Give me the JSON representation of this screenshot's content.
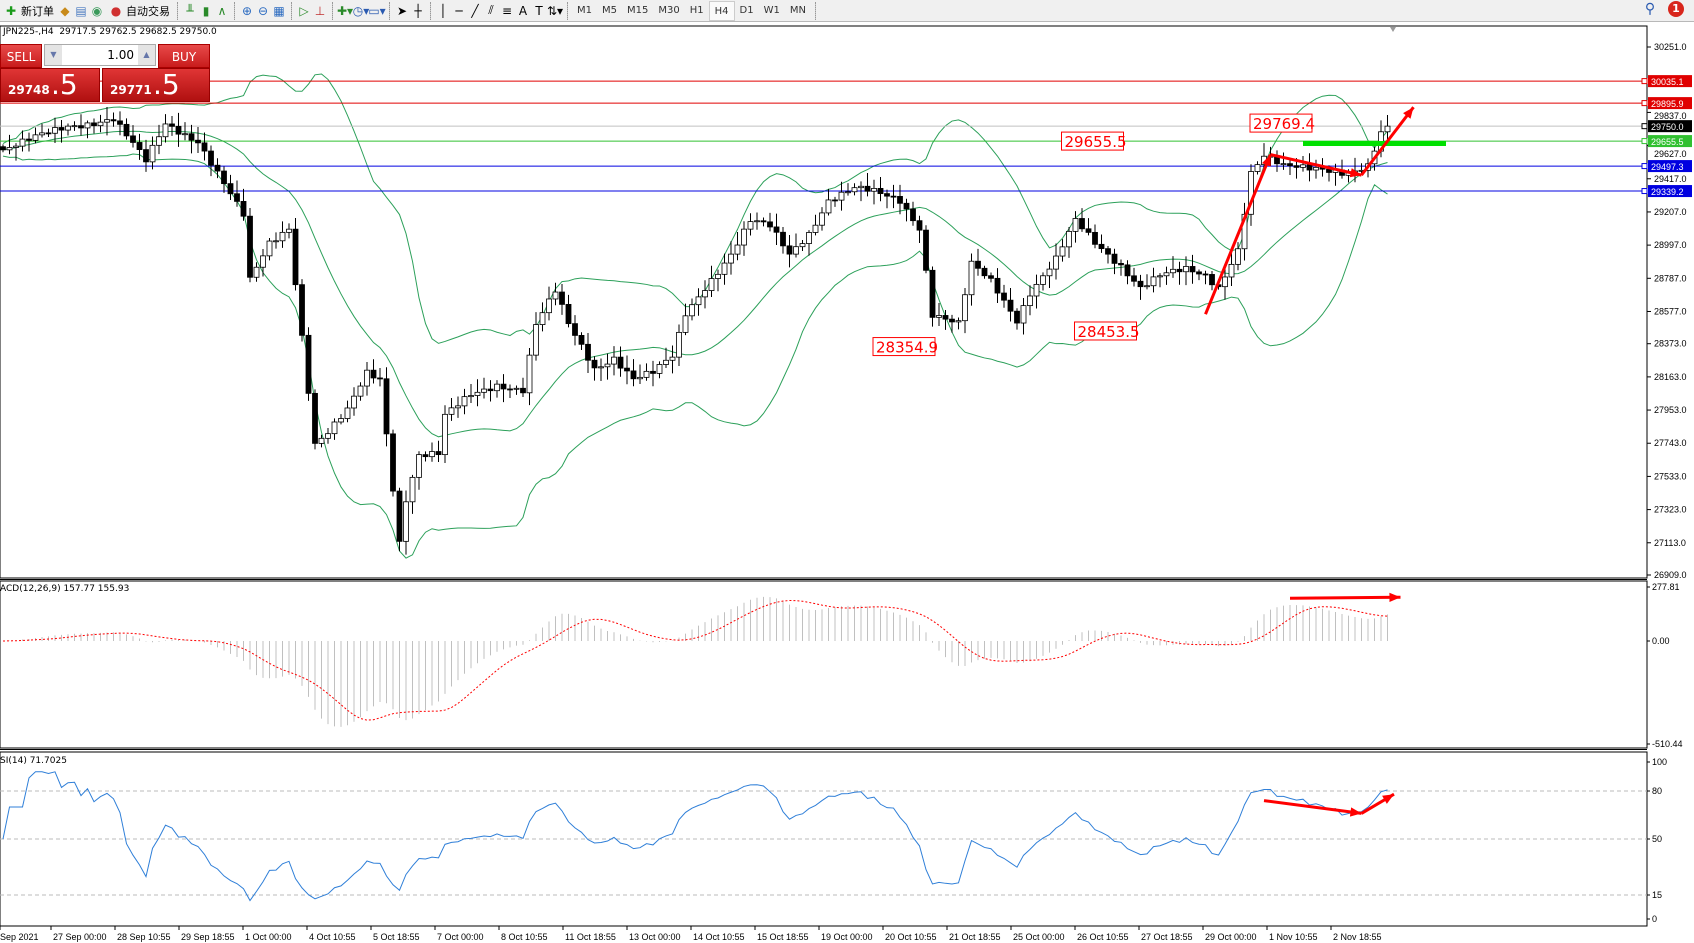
{
  "toolbar": {
    "new_order": "新订单",
    "auto_trading": "自动交易",
    "icons": [
      "new-order-icon",
      "market-watch-icon",
      "data-window-icon",
      "signals-icon",
      "auto-trading-icon",
      "bar-chart-icon",
      "candlestick-icon",
      "line-chart-icon",
      "zoom-in-icon",
      "zoom-out-icon",
      "tile-windows-icon",
      "autoscroll-icon",
      "chart-shift-icon",
      "indicators-icon",
      "periods-icon",
      "templates-icon",
      "cursor-icon",
      "crosshair-icon",
      "vertical-line-icon",
      "horizontal-line-icon",
      "trendline-icon",
      "equidistant-channel-icon",
      "fibonacci-icon",
      "text-icon",
      "text-label-icon",
      "arrows-icon"
    ],
    "timeframes": [
      "M1",
      "M5",
      "M15",
      "M30",
      "H1",
      "H4",
      "D1",
      "W1",
      "MN"
    ],
    "active_timeframe": "H4",
    "notifications": "1"
  },
  "symbol_info": "JPN225-,H4  29717.5 29762.5 29682.5 29750.0",
  "trade_panel": {
    "sell": "SELL",
    "buy": "BUY",
    "lots": "1.00",
    "bid_main": "29748",
    "bid_pip": ".5",
    "ask_main": "29771",
    "ask_pip": ".5"
  },
  "chart_data": [
    {
      "type": "candlestick",
      "symbol": "JPN225-",
      "timeframe": "H4",
      "y_ticks": [
        "30251.0",
        "29837.0",
        "29627.0",
        "29417.0",
        "29207.0",
        "28997.0",
        "28787.0",
        "28577.0",
        "28373.0",
        "28163.0",
        "27953.0",
        "27743.0",
        "27533.0",
        "27323.0",
        "27113.0",
        "26909.0"
      ],
      "ylim": [
        26909,
        30251
      ],
      "x_ticks": [
        "Sep 2021",
        "27 Sep 00:00",
        "28 Sep 10:55",
        "29 Sep 18:55",
        "1 Oct 00:00",
        "4 Oct 10:55",
        "5 Oct 18:55",
        "7 Oct 00:00",
        "8 Oct 10:55",
        "11 Oct 18:55",
        "13 Oct 00:00",
        "14 Oct 10:55",
        "15 Oct 18:55",
        "19 Oct 00:00",
        "20 Oct 10:55",
        "21 Oct 18:55",
        "25 Oct 00:00",
        "26 Oct 10:55",
        "27 Oct 18:55",
        "29 Oct 00:00",
        "1 Nov 10:55",
        "2 Nov 18:55"
      ],
      "close_anchors": [
        [
          0,
          29600
        ],
        [
          10,
          29750
        ],
        [
          17,
          29798
        ],
        [
          22,
          29524
        ],
        [
          25,
          29764
        ],
        [
          30,
          29661
        ],
        [
          33,
          29455
        ],
        [
          37,
          29180
        ],
        [
          38,
          28769
        ],
        [
          41,
          29009
        ],
        [
          44,
          29112
        ],
        [
          46,
          28426
        ],
        [
          48,
          27740
        ],
        [
          50,
          27808
        ],
        [
          53,
          27945
        ],
        [
          56,
          28185
        ],
        [
          58,
          28151
        ],
        [
          61,
          27122
        ],
        [
          62,
          27397
        ],
        [
          64,
          27671
        ],
        [
          67,
          27671
        ],
        [
          68,
          27911
        ],
        [
          72,
          28048
        ],
        [
          76,
          28117
        ],
        [
          80,
          28082
        ],
        [
          82,
          28494
        ],
        [
          85,
          28700
        ],
        [
          87,
          28494
        ],
        [
          91,
          28220
        ],
        [
          94,
          28288
        ],
        [
          97,
          28151
        ],
        [
          100,
          28185
        ],
        [
          103,
          28288
        ],
        [
          105,
          28563
        ],
        [
          108,
          28734
        ],
        [
          112,
          28940
        ],
        [
          115,
          29146
        ],
        [
          118,
          29112
        ],
        [
          121,
          28940
        ],
        [
          124,
          29077
        ],
        [
          127,
          29283
        ],
        [
          131,
          29352
        ],
        [
          134,
          29331
        ],
        [
          138,
          29283
        ],
        [
          141,
          29112
        ],
        [
          143,
          28563
        ],
        [
          147,
          28494
        ],
        [
          149,
          28872
        ],
        [
          152,
          28769
        ],
        [
          156,
          28528
        ],
        [
          158,
          28700
        ],
        [
          162,
          28906
        ],
        [
          165,
          29146
        ],
        [
          168,
          29009
        ],
        [
          172,
          28872
        ],
        [
          175,
          28734
        ],
        [
          178,
          28803
        ],
        [
          182,
          28837
        ],
        [
          185,
          28803
        ],
        [
          187,
          28734
        ],
        [
          190,
          28974
        ],
        [
          192,
          29455
        ],
        [
          194,
          29558
        ],
        [
          197,
          29489
        ],
        [
          200,
          29489
        ],
        [
          203,
          29489
        ],
        [
          207,
          29455
        ],
        [
          210,
          29489
        ],
        [
          212,
          29695
        ],
        [
          213,
          29750
        ]
      ],
      "bollinger": {
        "period": 20,
        "deviation": 2,
        "color": "#2ca05a"
      },
      "levels": [
        {
          "price": "30035.1",
          "color": "#e00000"
        },
        {
          "price": "29895.9",
          "color": "#e00000"
        },
        {
          "price": "29750.0",
          "color": "#000000",
          "line": "#c0c0c0"
        },
        {
          "price": "29655.5",
          "color": "#30c030"
        },
        {
          "price": "29497.3",
          "color": "#0000e0"
        },
        {
          "price": "29339.2",
          "color": "#0000e0"
        }
      ],
      "annotations": [
        {
          "text": "29655.5",
          "price": 29655.5,
          "bar": 173
        },
        {
          "text": "28354.9",
          "price": 28354.9,
          "bar": 144
        },
        {
          "text": "28453.5",
          "price": 28453.5,
          "bar": 175
        },
        {
          "text": "29769.4",
          "price": 29769.4,
          "bar": 202
        }
      ],
      "support_zone": {
        "price": 29640,
        "from_bar": 200,
        "to_bar": 222,
        "color": "#00e000"
      },
      "arrows": [
        [
          [
            185,
            28560
          ],
          [
            195,
            29570
          ]
        ],
        [
          [
            195,
            29570
          ],
          [
            209,
            29440
          ]
        ],
        [
          [
            209,
            29440
          ],
          [
            217,
            29870
          ]
        ]
      ],
      "arrow_color": "#ff0000"
    },
    {
      "type": "macd",
      "label": "ACD(12,26,9) 157.77 155.93",
      "params": [
        12,
        26,
        9
      ],
      "y_ticks": [
        "277.81",
        "0.00",
        "-510.44"
      ],
      "ylim": [
        -510.44,
        277.81
      ],
      "histogram_color": "#c0c0c0",
      "signal_color": "#ff0000",
      "arrows": [
        [
          [
            198,
            220
          ],
          [
            215,
            225
          ]
        ]
      ]
    },
    {
      "type": "rsi",
      "label": "SI(14) 71.7025",
      "period": 14,
      "y_ticks": [
        "100",
        "80",
        "50",
        "15",
        "0"
      ],
      "levels": [
        80,
        50,
        15
      ],
      "ylim": [
        0,
        100
      ],
      "color": "#2f7fd8",
      "arrows": [
        [
          [
            194,
            74
          ],
          [
            209,
            66
          ]
        ],
        [
          [
            209,
            66
          ],
          [
            214,
            78
          ]
        ]
      ]
    }
  ]
}
